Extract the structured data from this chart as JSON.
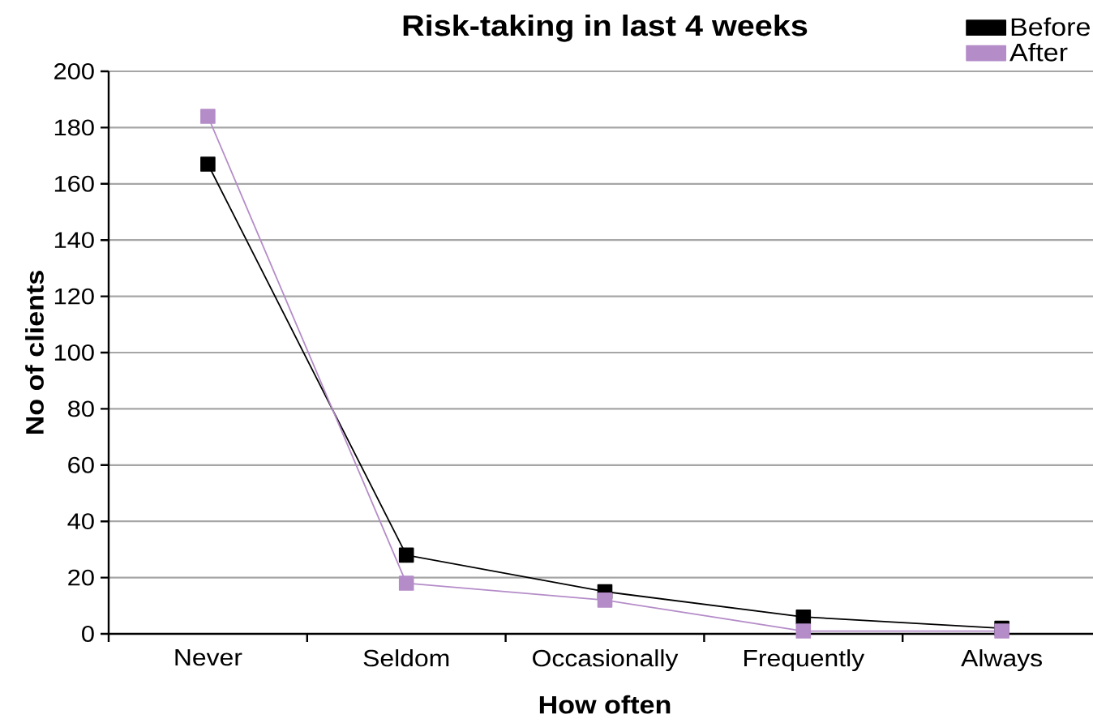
{
  "chart_data": {
    "type": "line",
    "title": "Risk-taking in last 4 weeks",
    "xlabel": "How often",
    "ylabel": "No of clients",
    "categories": [
      "Never",
      "Seldom",
      "Occasionally",
      "Frequently",
      "Always"
    ],
    "series": [
      {
        "name": "Before",
        "color": "#000000",
        "values": [
          167,
          28,
          15,
          6,
          2
        ]
      },
      {
        "name": "After",
        "color": "#b48cc8",
        "values": [
          184,
          18,
          12,
          1,
          1
        ]
      }
    ],
    "ylim": [
      0,
      200
    ],
    "yticks": [
      0,
      20,
      40,
      60,
      80,
      100,
      120,
      140,
      160,
      180,
      200
    ],
    "grid": "y",
    "legend": "top right",
    "marker": "square",
    "line_style": "solid"
  }
}
